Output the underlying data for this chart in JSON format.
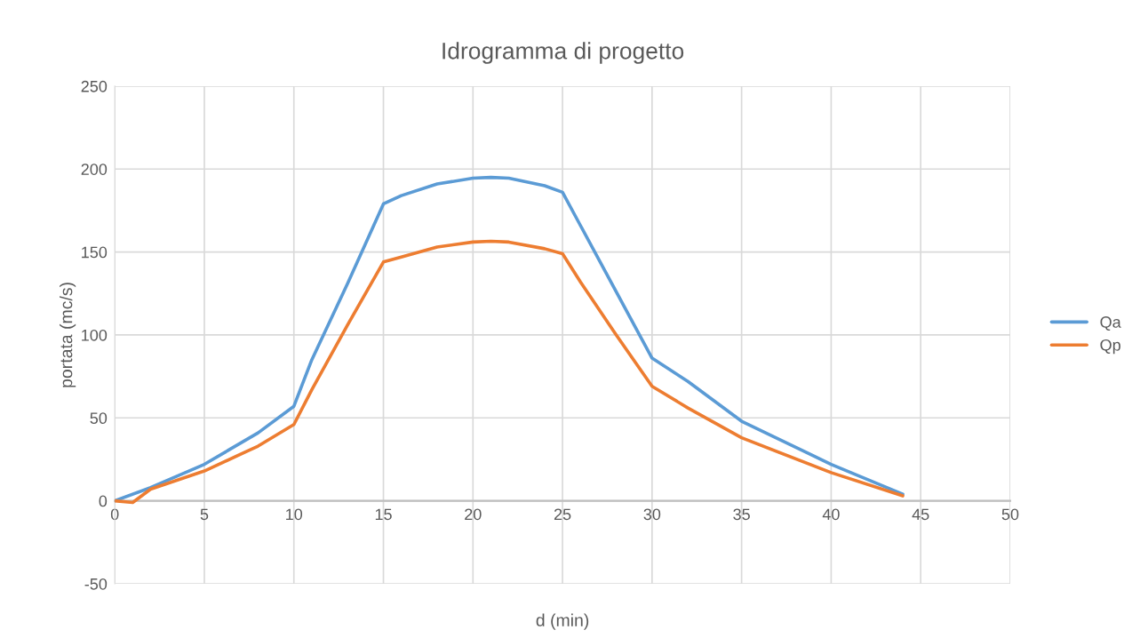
{
  "chart_data": {
    "type": "line",
    "title": "Idrogramma di progetto",
    "xlabel": "d (min)",
    "ylabel": "portata (mc/s)",
    "series": [
      {
        "name": "Qa",
        "color": "#5b9bd5",
        "x": [
          0,
          2,
          5,
          8,
          10,
          11,
          13,
          15,
          16,
          18,
          20,
          21,
          22,
          24,
          25,
          26,
          28,
          30,
          32,
          35,
          40,
          44
        ],
        "values": [
          0,
          8,
          22,
          41,
          57,
          85,
          131,
          179,
          184,
          191,
          194.5,
          195,
          194.5,
          190,
          186,
          166,
          126,
          86,
          72,
          48,
          22,
          4
        ]
      },
      {
        "name": "Qp",
        "color": "#ed7d31",
        "x": [
          0,
          1,
          2,
          5,
          8,
          10,
          11,
          13,
          15,
          16,
          18,
          20,
          21,
          22,
          24,
          25,
          26,
          28,
          30,
          32,
          35,
          40,
          44
        ],
        "values": [
          0,
          -1,
          7,
          18,
          33,
          46,
          67,
          106,
          144,
          147,
          153,
          156,
          156.5,
          156,
          152,
          149,
          132,
          100,
          69,
          56,
          38,
          17,
          3
        ]
      }
    ],
    "xlim": [
      0,
      50
    ],
    "xticks": [
      0,
      5,
      10,
      15,
      20,
      25,
      30,
      35,
      40,
      45,
      50
    ],
    "ylim": [
      -50,
      250
    ],
    "yticks": [
      -50,
      0,
      50,
      100,
      150,
      200,
      250
    ],
    "grid": true,
    "legend": "right",
    "marker": "none",
    "line_style": "solid"
  }
}
